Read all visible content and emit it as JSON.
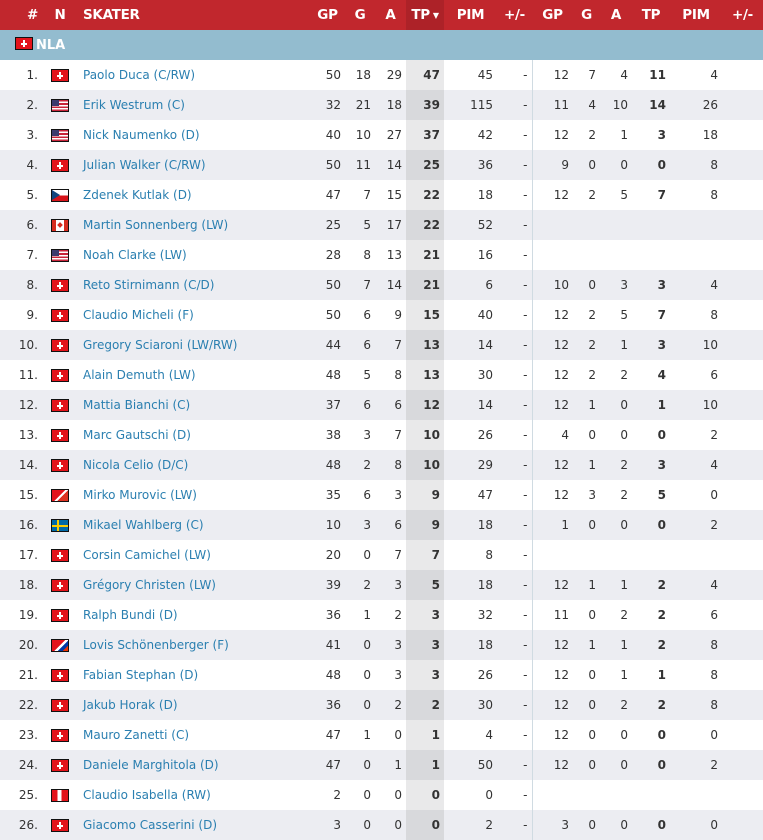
{
  "header": {
    "cols": [
      "#",
      "N",
      "SKATER",
      "GP",
      "G",
      "A",
      "TP",
      "PIM",
      "+/-",
      "GP",
      "G",
      "A",
      "TP",
      "PIM",
      "+/-"
    ],
    "sort_icon": "caret-down-icon"
  },
  "league": {
    "name": "NLA",
    "flag": "ch"
  },
  "colors": {
    "header": "#c1272d",
    "league_bar": "#93bccf",
    "link": "#2a7fb0"
  },
  "rows": [
    {
      "rank": "1.",
      "flag": "ch",
      "name": "Paolo Duca (C/RW)",
      "gp": "50",
      "g": "18",
      "a": "29",
      "tp": "47",
      "pim": "45",
      "pm": "-",
      "pgp": "12",
      "pg": "7",
      "pa": "4",
      "ptp": "11",
      "ppim": "4",
      "ppm": ""
    },
    {
      "rank": "2.",
      "flag": "us",
      "name": "Erik Westrum (C)",
      "gp": "32",
      "g": "21",
      "a": "18",
      "tp": "39",
      "pim": "115",
      "pm": "-",
      "pgp": "11",
      "pg": "4",
      "pa": "10",
      "ptp": "14",
      "ppim": "26",
      "ppm": ""
    },
    {
      "rank": "3.",
      "flag": "us",
      "name": "Nick Naumenko (D)",
      "gp": "40",
      "g": "10",
      "a": "27",
      "tp": "37",
      "pim": "42",
      "pm": "-",
      "pgp": "12",
      "pg": "2",
      "pa": "1",
      "ptp": "3",
      "ppim": "18",
      "ppm": ""
    },
    {
      "rank": "4.",
      "flag": "ch",
      "name": "Julian Walker (C/RW)",
      "gp": "50",
      "g": "11",
      "a": "14",
      "tp": "25",
      "pim": "36",
      "pm": "-",
      "pgp": "9",
      "pg": "0",
      "pa": "0",
      "ptp": "0",
      "ppim": "8",
      "ppm": ""
    },
    {
      "rank": "5.",
      "flag": "cz",
      "name": "Zdenek Kutlak (D)",
      "gp": "47",
      "g": "7",
      "a": "15",
      "tp": "22",
      "pim": "18",
      "pm": "-",
      "pgp": "12",
      "pg": "2",
      "pa": "5",
      "ptp": "7",
      "ppim": "8",
      "ppm": ""
    },
    {
      "rank": "6.",
      "flag": "ca",
      "name": "Martin Sonnenberg (LW)",
      "gp": "25",
      "g": "5",
      "a": "17",
      "tp": "22",
      "pim": "52",
      "pm": "-",
      "pgp": "",
      "pg": "",
      "pa": "",
      "ptp": "",
      "ppim": "",
      "ppm": ""
    },
    {
      "rank": "7.",
      "flag": "us",
      "name": "Noah Clarke (LW)",
      "gp": "28",
      "g": "8",
      "a": "13",
      "tp": "21",
      "pim": "16",
      "pm": "-",
      "pgp": "",
      "pg": "",
      "pa": "",
      "ptp": "",
      "ppim": "",
      "ppm": ""
    },
    {
      "rank": "8.",
      "flag": "ch",
      "name": "Reto Stirnimann (C/D)",
      "gp": "50",
      "g": "7",
      "a": "14",
      "tp": "21",
      "pim": "6",
      "pm": "-",
      "pgp": "10",
      "pg": "0",
      "pa": "3",
      "ptp": "3",
      "ppim": "4",
      "ppm": ""
    },
    {
      "rank": "9.",
      "flag": "ch",
      "name": "Claudio Micheli (F)",
      "gp": "50",
      "g": "6",
      "a": "9",
      "tp": "15",
      "pim": "40",
      "pm": "-",
      "pgp": "12",
      "pg": "2",
      "pa": "5",
      "ptp": "7",
      "ppim": "8",
      "ppm": ""
    },
    {
      "rank": "10.",
      "flag": "ch",
      "name": "Gregory Sciaroni (LW/RW)",
      "gp": "44",
      "g": "6",
      "a": "7",
      "tp": "13",
      "pim": "14",
      "pm": "-",
      "pgp": "12",
      "pg": "2",
      "pa": "1",
      "ptp": "3",
      "ppim": "10",
      "ppm": ""
    },
    {
      "rank": "11.",
      "flag": "ch",
      "name": "Alain Demuth (LW)",
      "gp": "48",
      "g": "5",
      "a": "8",
      "tp": "13",
      "pim": "30",
      "pm": "-",
      "pgp": "12",
      "pg": "2",
      "pa": "2",
      "ptp": "4",
      "ppim": "6",
      "ppm": ""
    },
    {
      "rank": "12.",
      "flag": "ch",
      "name": "Mattia Bianchi (C)",
      "gp": "37",
      "g": "6",
      "a": "6",
      "tp": "12",
      "pim": "14",
      "pm": "-",
      "pgp": "12",
      "pg": "1",
      "pa": "0",
      "ptp": "1",
      "ppim": "10",
      "ppm": ""
    },
    {
      "rank": "13.",
      "flag": "ch",
      "name": "Marc Gautschi (D)",
      "gp": "38",
      "g": "3",
      "a": "7",
      "tp": "10",
      "pim": "26",
      "pm": "-",
      "pgp": "4",
      "pg": "0",
      "pa": "0",
      "ptp": "0",
      "ppim": "2",
      "ppm": ""
    },
    {
      "rank": "14.",
      "flag": "ch",
      "name": "Nicola Celio (D/C)",
      "gp": "48",
      "g": "2",
      "a": "8",
      "tp": "10",
      "pim": "29",
      "pm": "-",
      "pgp": "12",
      "pg": "1",
      "pa": "2",
      "ptp": "3",
      "ppim": "4",
      "ppm": ""
    },
    {
      "rank": "15.",
      "flag": "chhr",
      "name": "Mirko Murovic (LW)",
      "gp": "35",
      "g": "6",
      "a": "3",
      "tp": "9",
      "pim": "47",
      "pm": "-",
      "pgp": "12",
      "pg": "3",
      "pa": "2",
      "ptp": "5",
      "ppim": "0",
      "ppm": ""
    },
    {
      "rank": "16.",
      "flag": "se",
      "name": "Mikael Wahlberg (C)",
      "gp": "10",
      "g": "3",
      "a": "6",
      "tp": "9",
      "pim": "18",
      "pm": "-",
      "pgp": "1",
      "pg": "0",
      "pa": "0",
      "ptp": "0",
      "ppim": "2",
      "ppm": ""
    },
    {
      "rank": "17.",
      "flag": "ch",
      "name": "Corsin Camichel (LW)",
      "gp": "20",
      "g": "0",
      "a": "7",
      "tp": "7",
      "pim": "8",
      "pm": "-",
      "pgp": "",
      "pg": "",
      "pa": "",
      "ptp": "",
      "ppim": "",
      "ppm": ""
    },
    {
      "rank": "18.",
      "flag": "ch",
      "name": "Grégory Christen (LW)",
      "gp": "39",
      "g": "2",
      "a": "3",
      "tp": "5",
      "pim": "18",
      "pm": "-",
      "pgp": "12",
      "pg": "1",
      "pa": "1",
      "ptp": "2",
      "ppim": "4",
      "ppm": ""
    },
    {
      "rank": "19.",
      "flag": "ch",
      "name": "Ralph Bundi (D)",
      "gp": "36",
      "g": "1",
      "a": "2",
      "tp": "3",
      "pim": "32",
      "pm": "-",
      "pgp": "11",
      "pg": "0",
      "pa": "2",
      "ptp": "2",
      "ppim": "6",
      "ppm": ""
    },
    {
      "rank": "20.",
      "flag": "chsi",
      "name": "Lovis Schönenberger (F)",
      "gp": "41",
      "g": "0",
      "a": "3",
      "tp": "3",
      "pim": "18",
      "pm": "-",
      "pgp": "12",
      "pg": "1",
      "pa": "1",
      "ptp": "2",
      "ppim": "8",
      "ppm": ""
    },
    {
      "rank": "21.",
      "flag": "ch",
      "name": "Fabian Stephan (D)",
      "gp": "48",
      "g": "0",
      "a": "3",
      "tp": "3",
      "pim": "26",
      "pm": "-",
      "pgp": "12",
      "pg": "0",
      "pa": "1",
      "ptp": "1",
      "ppim": "8",
      "ppm": ""
    },
    {
      "rank": "22.",
      "flag": "ch",
      "name": "Jakub Horak (D)",
      "gp": "36",
      "g": "0",
      "a": "2",
      "tp": "2",
      "pim": "30",
      "pm": "-",
      "pgp": "12",
      "pg": "0",
      "pa": "2",
      "ptp": "2",
      "ppim": "8",
      "ppm": ""
    },
    {
      "rank": "23.",
      "flag": "ch",
      "name": "Mauro Zanetti (C)",
      "gp": "47",
      "g": "1",
      "a": "0",
      "tp": "1",
      "pim": "4",
      "pm": "-",
      "pgp": "12",
      "pg": "0",
      "pa": "0",
      "ptp": "0",
      "ppim": "0",
      "ppm": ""
    },
    {
      "rank": "24.",
      "flag": "ch",
      "name": "Daniele Marghitola (D)",
      "gp": "47",
      "g": "0",
      "a": "1",
      "tp": "1",
      "pim": "50",
      "pm": "-",
      "pgp": "12",
      "pg": "0",
      "pa": "0",
      "ptp": "0",
      "ppim": "2",
      "ppm": ""
    },
    {
      "rank": "25.",
      "flag": "chit",
      "name": "Claudio Isabella (RW)",
      "gp": "2",
      "g": "0",
      "a": "0",
      "tp": "0",
      "pim": "0",
      "pm": "-",
      "pgp": "",
      "pg": "",
      "pa": "",
      "ptp": "",
      "ppim": "",
      "ppm": ""
    },
    {
      "rank": "26.",
      "flag": "ch",
      "name": "Giacomo Casserini (D)",
      "gp": "3",
      "g": "0",
      "a": "0",
      "tp": "0",
      "pim": "2",
      "pm": "-",
      "pgp": "3",
      "pg": "0",
      "pa": "0",
      "ptp": "0",
      "ppim": "0",
      "ppm": ""
    }
  ]
}
